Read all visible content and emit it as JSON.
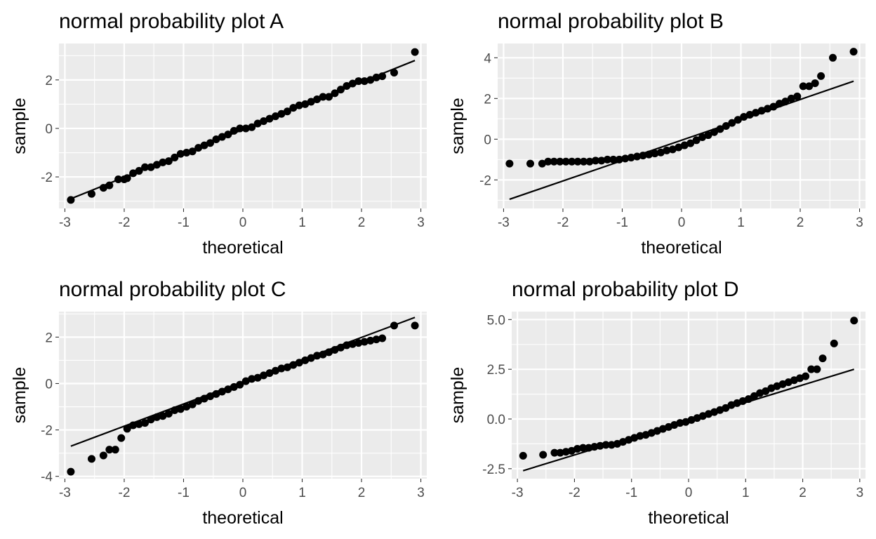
{
  "chart_data": [
    {
      "type": "scatter",
      "title": "normal probability plot A",
      "xlabel": "theoretical",
      "ylabel": "sample",
      "xlim": [
        -3.1,
        3.1
      ],
      "ylim": [
        -3.3,
        3.5
      ],
      "x_ticks": [
        -3,
        -2,
        -1,
        0,
        1,
        2,
        3
      ],
      "x_tick_labels": [
        "-3",
        "-2",
        "-1",
        "0",
        "1",
        "2",
        "3"
      ],
      "y_ticks": [
        -2,
        0,
        2
      ],
      "y_tick_labels": [
        "-2",
        "0",
        "2"
      ],
      "grid": true,
      "reference_line": {
        "x": [
          -2.9,
          2.9
        ],
        "y": [
          -2.9,
          2.8
        ]
      },
      "points": [
        [
          -2.9,
          -2.95
        ],
        [
          -2.55,
          -2.7
        ],
        [
          -2.35,
          -2.45
        ],
        [
          -2.25,
          -2.35
        ],
        [
          -2.1,
          -2.1
        ],
        [
          -2.0,
          -2.1
        ],
        [
          -1.95,
          -2.05
        ],
        [
          -1.85,
          -1.85
        ],
        [
          -1.75,
          -1.75
        ],
        [
          -1.65,
          -1.6
        ],
        [
          -1.55,
          -1.6
        ],
        [
          -1.45,
          -1.5
        ],
        [
          -1.35,
          -1.4
        ],
        [
          -1.25,
          -1.35
        ],
        [
          -1.15,
          -1.2
        ],
        [
          -1.05,
          -1.05
        ],
        [
          -0.95,
          -1.0
        ],
        [
          -0.85,
          -0.95
        ],
        [
          -0.75,
          -0.8
        ],
        [
          -0.65,
          -0.7
        ],
        [
          -0.55,
          -0.6
        ],
        [
          -0.45,
          -0.45
        ],
        [
          -0.35,
          -0.35
        ],
        [
          -0.25,
          -0.25
        ],
        [
          -0.15,
          -0.1
        ],
        [
          -0.05,
          0.0
        ],
        [
          0.05,
          0.0
        ],
        [
          0.15,
          0.05
        ],
        [
          0.25,
          0.2
        ],
        [
          0.35,
          0.3
        ],
        [
          0.45,
          0.4
        ],
        [
          0.55,
          0.5
        ],
        [
          0.65,
          0.6
        ],
        [
          0.75,
          0.7
        ],
        [
          0.85,
          0.85
        ],
        [
          0.95,
          0.95
        ],
        [
          1.05,
          1.0
        ],
        [
          1.15,
          1.1
        ],
        [
          1.25,
          1.2
        ],
        [
          1.35,
          1.3
        ],
        [
          1.45,
          1.3
        ],
        [
          1.55,
          1.45
        ],
        [
          1.65,
          1.6
        ],
        [
          1.75,
          1.75
        ],
        [
          1.85,
          1.85
        ],
        [
          1.95,
          1.95
        ],
        [
          2.05,
          1.95
        ],
        [
          2.15,
          2.0
        ],
        [
          2.25,
          2.1
        ],
        [
          2.35,
          2.15
        ],
        [
          2.55,
          2.3
        ],
        [
          2.9,
          3.15
        ]
      ]
    },
    {
      "type": "scatter",
      "title": "normal probability plot B",
      "xlabel": "theoretical",
      "ylabel": "sample",
      "xlim": [
        -3.1,
        3.1
      ],
      "ylim": [
        -3.4,
        4.7
      ],
      "x_ticks": [
        -3,
        -2,
        -1,
        0,
        1,
        2,
        3
      ],
      "x_tick_labels": [
        "-3",
        "-2",
        "-1",
        "0",
        "1",
        "2",
        "3"
      ],
      "y_ticks": [
        -2,
        0,
        2,
        4
      ],
      "y_tick_labels": [
        "-2",
        "0",
        "2",
        "4"
      ],
      "grid": true,
      "reference_line": {
        "x": [
          -2.9,
          2.9
        ],
        "y": [
          -2.95,
          2.85
        ]
      },
      "points": [
        [
          -2.9,
          -1.2
        ],
        [
          -2.55,
          -1.2
        ],
        [
          -2.35,
          -1.2
        ],
        [
          -2.25,
          -1.1
        ],
        [
          -2.15,
          -1.1
        ],
        [
          -2.05,
          -1.1
        ],
        [
          -1.95,
          -1.1
        ],
        [
          -1.85,
          -1.1
        ],
        [
          -1.75,
          -1.1
        ],
        [
          -1.65,
          -1.1
        ],
        [
          -1.55,
          -1.1
        ],
        [
          -1.45,
          -1.05
        ],
        [
          -1.35,
          -1.05
        ],
        [
          -1.25,
          -1.0
        ],
        [
          -1.15,
          -1.0
        ],
        [
          -1.05,
          -1.0
        ],
        [
          -0.95,
          -0.95
        ],
        [
          -0.85,
          -0.9
        ],
        [
          -0.75,
          -0.85
        ],
        [
          -0.65,
          -0.8
        ],
        [
          -0.55,
          -0.75
        ],
        [
          -0.45,
          -0.7
        ],
        [
          -0.35,
          -0.65
        ],
        [
          -0.25,
          -0.55
        ],
        [
          -0.15,
          -0.5
        ],
        [
          -0.05,
          -0.4
        ],
        [
          0.05,
          -0.3
        ],
        [
          0.15,
          -0.2
        ],
        [
          0.25,
          -0.05
        ],
        [
          0.35,
          0.1
        ],
        [
          0.45,
          0.2
        ],
        [
          0.55,
          0.35
        ],
        [
          0.65,
          0.5
        ],
        [
          0.75,
          0.65
        ],
        [
          0.85,
          0.8
        ],
        [
          0.95,
          0.95
        ],
        [
          1.05,
          1.1
        ],
        [
          1.15,
          1.2
        ],
        [
          1.25,
          1.3
        ],
        [
          1.35,
          1.4
        ],
        [
          1.45,
          1.5
        ],
        [
          1.55,
          1.6
        ],
        [
          1.65,
          1.75
        ],
        [
          1.75,
          1.85
        ],
        [
          1.85,
          2.0
        ],
        [
          1.95,
          2.1
        ],
        [
          2.05,
          2.6
        ],
        [
          2.15,
          2.6
        ],
        [
          2.25,
          2.75
        ],
        [
          2.35,
          3.1
        ],
        [
          2.55,
          4.0
        ],
        [
          2.9,
          4.3
        ]
      ]
    },
    {
      "type": "scatter",
      "title": "normal probability plot C",
      "xlabel": "theoretical",
      "ylabel": "sample",
      "xlim": [
        -3.1,
        3.1
      ],
      "ylim": [
        -4.1,
        3.1
      ],
      "x_ticks": [
        -3,
        -2,
        -1,
        0,
        1,
        2,
        3
      ],
      "x_tick_labels": [
        "-3",
        "-2",
        "-1",
        "0",
        "1",
        "2",
        "3"
      ],
      "y_ticks": [
        -4,
        -2,
        0,
        2
      ],
      "y_tick_labels": [
        "-4",
        "-2",
        "0",
        "2"
      ],
      "grid": true,
      "reference_line": {
        "x": [
          -2.9,
          2.9
        ],
        "y": [
          -2.7,
          2.85
        ]
      },
      "points": [
        [
          -2.9,
          -3.8
        ],
        [
          -2.55,
          -3.25
        ],
        [
          -2.35,
          -3.1
        ],
        [
          -2.25,
          -2.85
        ],
        [
          -2.15,
          -2.85
        ],
        [
          -2.05,
          -2.35
        ],
        [
          -1.95,
          -1.95
        ],
        [
          -1.85,
          -1.8
        ],
        [
          -1.75,
          -1.75
        ],
        [
          -1.65,
          -1.7
        ],
        [
          -1.55,
          -1.55
        ],
        [
          -1.45,
          -1.45
        ],
        [
          -1.35,
          -1.4
        ],
        [
          -1.25,
          -1.3
        ],
        [
          -1.15,
          -1.15
        ],
        [
          -1.05,
          -1.1
        ],
        [
          -0.95,
          -1.0
        ],
        [
          -0.85,
          -0.9
        ],
        [
          -0.75,
          -0.75
        ],
        [
          -0.65,
          -0.65
        ],
        [
          -0.55,
          -0.55
        ],
        [
          -0.45,
          -0.45
        ],
        [
          -0.35,
          -0.35
        ],
        [
          -0.25,
          -0.25
        ],
        [
          -0.15,
          -0.15
        ],
        [
          -0.05,
          -0.05
        ],
        [
          0.05,
          0.1
        ],
        [
          0.15,
          0.2
        ],
        [
          0.25,
          0.25
        ],
        [
          0.35,
          0.35
        ],
        [
          0.45,
          0.45
        ],
        [
          0.55,
          0.55
        ],
        [
          0.65,
          0.65
        ],
        [
          0.75,
          0.7
        ],
        [
          0.85,
          0.8
        ],
        [
          0.95,
          0.9
        ],
        [
          1.05,
          1.0
        ],
        [
          1.15,
          1.1
        ],
        [
          1.25,
          1.2
        ],
        [
          1.35,
          1.25
        ],
        [
          1.45,
          1.35
        ],
        [
          1.55,
          1.45
        ],
        [
          1.65,
          1.55
        ],
        [
          1.75,
          1.65
        ],
        [
          1.85,
          1.7
        ],
        [
          1.95,
          1.75
        ],
        [
          2.05,
          1.8
        ],
        [
          2.15,
          1.85
        ],
        [
          2.25,
          1.9
        ],
        [
          2.35,
          1.95
        ],
        [
          2.55,
          2.5
        ],
        [
          2.9,
          2.5
        ]
      ]
    },
    {
      "type": "scatter",
      "title": "normal probability plot D",
      "xlabel": "theoretical",
      "ylabel": "sample",
      "xlim": [
        -3.1,
        3.1
      ],
      "ylim": [
        -3.0,
        5.4
      ],
      "x_ticks": [
        -3,
        -2,
        -1,
        0,
        1,
        2,
        3
      ],
      "x_tick_labels": [
        "-3",
        "-2",
        "-1",
        "0",
        "1",
        "2",
        "3"
      ],
      "y_ticks": [
        -2.5,
        0,
        2.5,
        5
      ],
      "y_tick_labels": [
        "-2.5",
        "0.0",
        "2.5",
        "5.0"
      ],
      "grid": true,
      "reference_line": {
        "x": [
          -2.9,
          2.9
        ],
        "y": [
          -2.6,
          2.5
        ]
      },
      "points": [
        [
          -2.9,
          -1.85
        ],
        [
          -2.55,
          -1.8
        ],
        [
          -2.35,
          -1.7
        ],
        [
          -2.25,
          -1.7
        ],
        [
          -2.15,
          -1.65
        ],
        [
          -2.05,
          -1.6
        ],
        [
          -1.95,
          -1.5
        ],
        [
          -1.85,
          -1.45
        ],
        [
          -1.75,
          -1.45
        ],
        [
          -1.65,
          -1.4
        ],
        [
          -1.55,
          -1.35
        ],
        [
          -1.45,
          -1.3
        ],
        [
          -1.35,
          -1.3
        ],
        [
          -1.25,
          -1.25
        ],
        [
          -1.15,
          -1.15
        ],
        [
          -1.05,
          -1.05
        ],
        [
          -0.95,
          -0.95
        ],
        [
          -0.85,
          -0.85
        ],
        [
          -0.75,
          -0.8
        ],
        [
          -0.65,
          -0.7
        ],
        [
          -0.55,
          -0.6
        ],
        [
          -0.45,
          -0.5
        ],
        [
          -0.35,
          -0.4
        ],
        [
          -0.25,
          -0.3
        ],
        [
          -0.15,
          -0.2
        ],
        [
          -0.05,
          -0.15
        ],
        [
          0.05,
          -0.05
        ],
        [
          0.15,
          0.05
        ],
        [
          0.25,
          0.15
        ],
        [
          0.35,
          0.25
        ],
        [
          0.45,
          0.35
        ],
        [
          0.55,
          0.45
        ],
        [
          0.65,
          0.55
        ],
        [
          0.75,
          0.7
        ],
        [
          0.85,
          0.8
        ],
        [
          0.95,
          0.9
        ],
        [
          1.05,
          1.0
        ],
        [
          1.15,
          1.15
        ],
        [
          1.25,
          1.3
        ],
        [
          1.35,
          1.4
        ],
        [
          1.45,
          1.55
        ],
        [
          1.55,
          1.65
        ],
        [
          1.65,
          1.75
        ],
        [
          1.75,
          1.85
        ],
        [
          1.85,
          1.95
        ],
        [
          1.95,
          2.05
        ],
        [
          2.05,
          2.15
        ],
        [
          2.15,
          2.5
        ],
        [
          2.25,
          2.5
        ],
        [
          2.35,
          3.05
        ],
        [
          2.55,
          3.8
        ],
        [
          2.9,
          4.95
        ]
      ]
    }
  ]
}
